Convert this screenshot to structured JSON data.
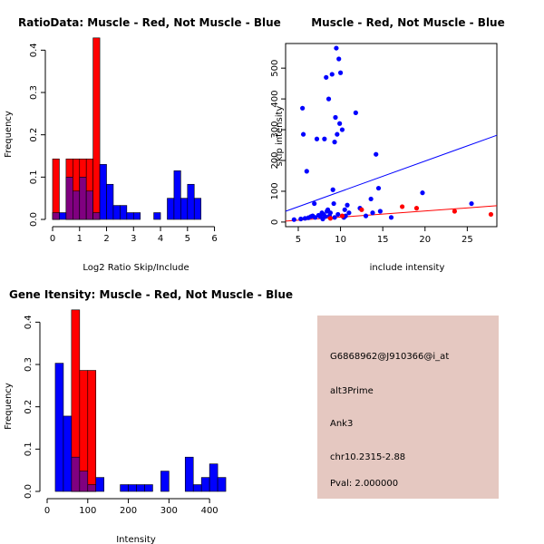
{
  "colors": {
    "muscle": "#ff0000",
    "not_muscle": "#0000ff",
    "overlap": "#800080",
    "info_bg": "#e5c8c1",
    "pval": "#cc0000"
  },
  "chart_data": [
    {
      "type": "histogram",
      "title": "RatioData: Muscle - Red, Not Muscle - Blue",
      "xlabel": "Log2 Ratio Skip/Include",
      "ylabel": "Frequency",
      "xlim": [
        0,
        6.25
      ],
      "ylim": [
        0,
        0.45
      ],
      "xticks": [
        0,
        1,
        2,
        3,
        4,
        5,
        6
      ],
      "yticks": [
        0.0,
        0.1,
        0.2,
        0.3,
        0.4
      ],
      "bin_width": 0.25,
      "bin_start": 0,
      "series": [
        {
          "name": "Not Muscle",
          "color": "blue",
          "values": [
            0.016,
            0.016,
            0.1,
            0.067,
            0.1,
            0.067,
            0.016,
            0.13,
            0.083,
            0.033,
            0.033,
            0.016,
            0.016,
            0,
            0,
            0.016,
            0,
            0.05,
            0.115,
            0.05,
            0.083,
            0.05
          ]
        },
        {
          "name": "Muscle",
          "color": "red",
          "values": [
            0.143,
            0,
            0.143,
            0.143,
            0.143,
            0.143,
            0.429,
            0,
            0,
            0,
            0,
            0,
            0,
            0,
            0,
            0,
            0,
            0,
            0,
            0,
            0,
            0
          ]
        }
      ]
    },
    {
      "type": "scatter",
      "title": "Muscle - Red, Not Muscle - Blue",
      "xlabel": "include intensity",
      "ylabel": "skip intensity",
      "xlim": [
        3.5,
        28.5
      ],
      "ylim": [
        -15,
        580
      ],
      "xticks": [
        5,
        10,
        15,
        20,
        25
      ],
      "yticks": [
        0,
        100,
        200,
        300,
        400,
        500
      ],
      "series": [
        {
          "name": "Not Muscle",
          "color": "blue",
          "points": [
            [
              4.5,
              8
            ],
            [
              5.3,
              10
            ],
            [
              5.5,
              370
            ],
            [
              5.6,
              285
            ],
            [
              5.8,
              12
            ],
            [
              6.0,
              165
            ],
            [
              6.2,
              14
            ],
            [
              6.5,
              18
            ],
            [
              6.7,
              20
            ],
            [
              6.9,
              60
            ],
            [
              7.0,
              15
            ],
            [
              7.2,
              270
            ],
            [
              7.4,
              22
            ],
            [
              7.6,
              18
            ],
            [
              7.8,
              30
            ],
            [
              8.0,
              25
            ],
            [
              8.1,
              270
            ],
            [
              8.3,
              470
            ],
            [
              8.4,
              35
            ],
            [
              8.5,
              40
            ],
            [
              8.6,
              400
            ],
            [
              8.7,
              20
            ],
            [
              8.8,
              30
            ],
            [
              9.0,
              480
            ],
            [
              9.1,
              105
            ],
            [
              9.2,
              60
            ],
            [
              9.3,
              260
            ],
            [
              9.4,
              340
            ],
            [
              9.5,
              565
            ],
            [
              9.6,
              285
            ],
            [
              9.7,
              25
            ],
            [
              9.8,
              530
            ],
            [
              9.9,
              320
            ],
            [
              10.0,
              485
            ],
            [
              10.2,
              300
            ],
            [
              10.4,
              15
            ],
            [
              10.5,
              40
            ],
            [
              10.6,
              20
            ],
            [
              11.8,
              355
            ],
            [
              12.3,
              45
            ],
            [
              13.0,
              20
            ],
            [
              13.6,
              75
            ],
            [
              13.8,
              30
            ],
            [
              14.2,
              220
            ],
            [
              14.5,
              110
            ],
            [
              14.7,
              35
            ],
            [
              16.0,
              15
            ],
            [
              19.7,
              95
            ],
            [
              25.5,
              60
            ],
            [
              9.3,
              15
            ],
            [
              8.2,
              18
            ],
            [
              7.9,
              10
            ],
            [
              11.0,
              30
            ],
            [
              10.8,
              55
            ]
          ]
        },
        {
          "name": "Muscle",
          "color": "red",
          "points": [
            [
              12.5,
              40
            ],
            [
              17.3,
              50
            ],
            [
              19.0,
              45
            ],
            [
              23.5,
              35
            ],
            [
              27.8,
              25
            ],
            [
              8.8,
              12
            ],
            [
              10.2,
              20
            ]
          ]
        }
      ],
      "fit_lines": [
        {
          "color": "blue",
          "x": [
            3.5,
            28.5
          ],
          "y": [
            35,
            282
          ]
        },
        {
          "color": "red",
          "x": [
            3.5,
            28.5
          ],
          "y": [
            3,
            53
          ]
        }
      ]
    },
    {
      "type": "histogram",
      "title": "Gene Itensity: Muscle - Red, Not Muscle - Blue",
      "xlabel": "Intensity",
      "ylabel": "Frequency",
      "xlim": [
        0,
        460
      ],
      "ylim": [
        0,
        0.45
      ],
      "xticks": [
        0,
        100,
        200,
        300,
        400
      ],
      "yticks": [
        0.0,
        0.1,
        0.2,
        0.3,
        0.4
      ],
      "bin_width": 20,
      "bin_start": 20,
      "series": [
        {
          "name": "Not Muscle",
          "color": "blue",
          "values": [
            0.303,
            0.178,
            0.081,
            0.048,
            0.016,
            0.033,
            0,
            0,
            0.016,
            0.016,
            0.016,
            0.016,
            0,
            0.048,
            0,
            0,
            0.081,
            0.016,
            0.033,
            0.065,
            0.033
          ]
        },
        {
          "name": "Muscle",
          "color": "red",
          "values": [
            0,
            0,
            0.429,
            0.286,
            0.286,
            0,
            0,
            0,
            0,
            0,
            0,
            0,
            0,
            0,
            0,
            0,
            0,
            0,
            0,
            0,
            0
          ]
        }
      ]
    }
  ],
  "info": {
    "probe": "G6868962@J910366@i_at",
    "event": "alt3Prime",
    "gene": "Ank3",
    "location": "chr10.2315-2.88",
    "pval": "Pval: 2.000000"
  }
}
